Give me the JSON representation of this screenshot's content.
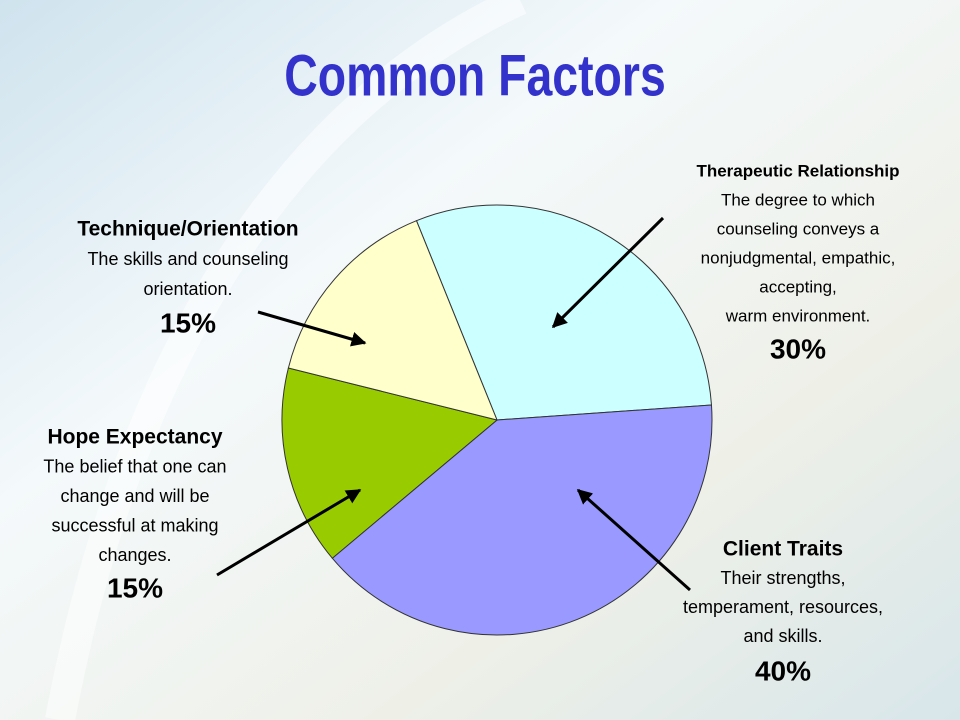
{
  "chart_data": {
    "type": "pie",
    "title": "Common Factors",
    "categories": [
      "Therapeutic Relationship",
      "Client Traits",
      "Hope Expectancy",
      "Technique/Orientation"
    ],
    "descriptions": [
      [
        "The degree to which",
        "counseling conveys a",
        "nonjudgmental, empathic,",
        "accepting,",
        "warm environment."
      ],
      [
        "Their strengths,",
        "temperament, resources,",
        "and skills."
      ],
      [
        "The belief that one can",
        "change and will be",
        "successful at making",
        "changes."
      ],
      [
        "The skills and counseling",
        "orientation."
      ]
    ],
    "values": [
      30,
      40,
      15,
      15
    ],
    "value_labels": [
      "30%",
      "40%",
      "15%",
      "15%"
    ],
    "colors": [
      "#ccffff",
      "#9999ff",
      "#99cc00",
      "#ffffcc"
    ]
  }
}
